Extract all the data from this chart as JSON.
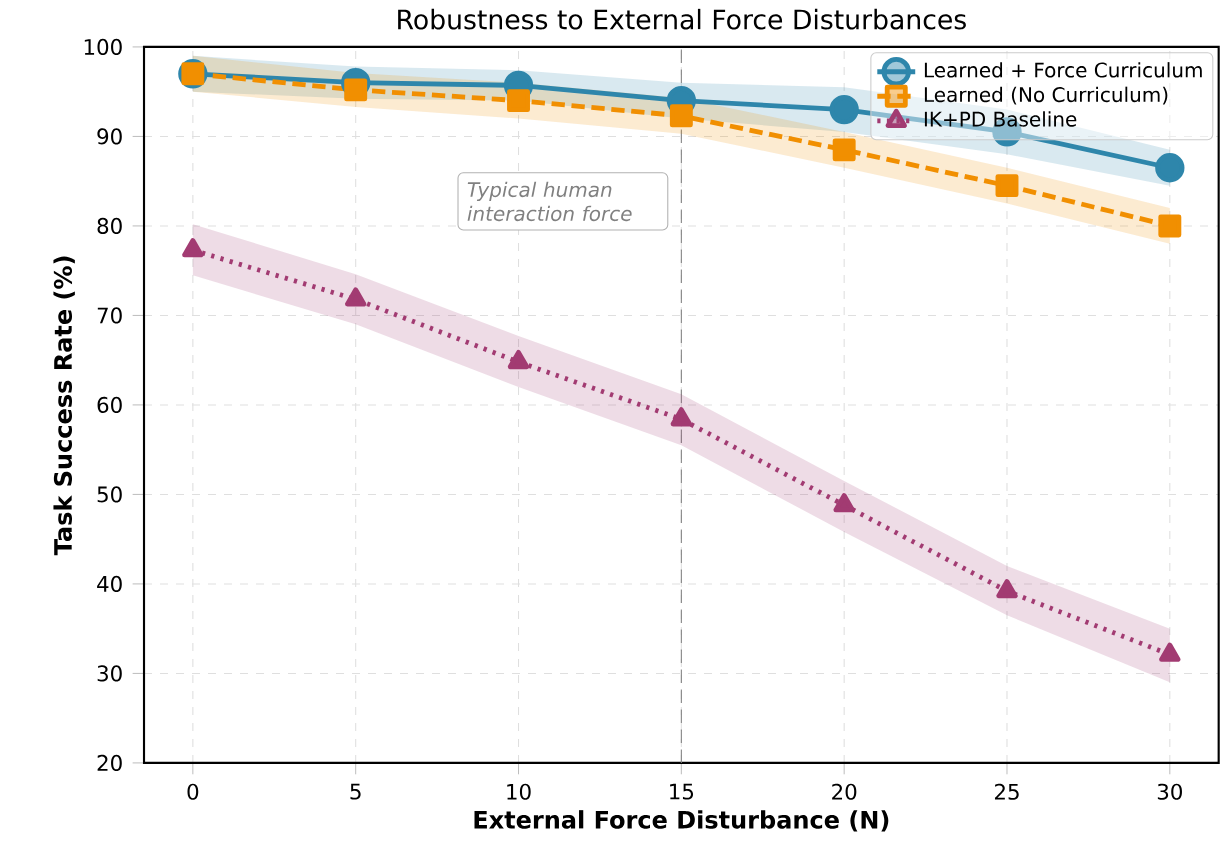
{
  "chart_data": {
    "type": "line",
    "title": "Robustness to External Force Disturbances",
    "xlabel": "External Force Disturbance (N)",
    "ylabel": "Task Success Rate (%)",
    "x": [
      0,
      5,
      10,
      15,
      20,
      25,
      30
    ],
    "series": [
      {
        "name": "Learned + Force Curriculum",
        "color": "#2e86ab",
        "marker": "circle",
        "line_style": "solid",
        "values": [
          97,
          96,
          95.7,
          94,
          93,
          90.5,
          86.5
        ],
        "lower": [
          95,
          94.2,
          94,
          92,
          90.5,
          88,
          84.5
        ],
        "upper": [
          99,
          97.8,
          97.4,
          96,
          95.5,
          93,
          88.5
        ]
      },
      {
        "name": "Learned (No Curriculum)",
        "color": "#f18f01",
        "marker": "square",
        "line_style": "dashed",
        "values": [
          97,
          95.2,
          94,
          92.3,
          88.5,
          84.5,
          80
        ],
        "lower": [
          95,
          93.3,
          92,
          90.3,
          86.5,
          82.5,
          78
        ],
        "upper": [
          99,
          97.1,
          96,
          94.3,
          90.5,
          86.5,
          82
        ]
      },
      {
        "name": "IK+PD Baseline",
        "color": "#a23b72",
        "marker": "triangle",
        "line_style": "dotted",
        "values": [
          77.3,
          71.8,
          64.8,
          58.4,
          48.8,
          39.2,
          32.1
        ],
        "lower": [
          74.5,
          69,
          62,
          55.5,
          45.8,
          36.5,
          29
        ],
        "upper": [
          80.2,
          74.6,
          67.7,
          61.2,
          51.5,
          42,
          35
        ]
      }
    ],
    "ref_lines": [
      {
        "axis": "x",
        "value": 15,
        "label": "Typical human interaction force",
        "color": "#808080",
        "line_style": "dashed"
      }
    ],
    "xlim": [
      -1.5,
      31.5
    ],
    "xticks": [
      0,
      5,
      10,
      15,
      20,
      25,
      30
    ],
    "ylim": [
      20,
      100
    ],
    "yticks": [
      20,
      30,
      40,
      50,
      60,
      70,
      80,
      90,
      100
    ],
    "grid": true,
    "legend": "top right"
  }
}
